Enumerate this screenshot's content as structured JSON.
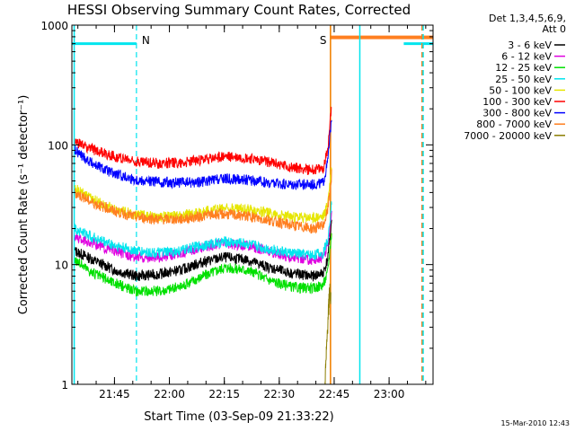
{
  "chart_data": {
    "type": "line",
    "title": "HESSI Observing Summary Count Rates, Corrected",
    "xlabel": "Start Time (03-Sep-09 21:33:22)",
    "ylabel": "Corrected Count Rate (s⁻¹ detector⁻¹)",
    "yscale": "log",
    "ylim": [
      1,
      1000
    ],
    "xlim": [
      "21:33:22",
      "23:12:00"
    ],
    "x_ticks": [
      "21:45",
      "22:00",
      "22:15",
      "22:30",
      "22:45",
      "23:00"
    ],
    "y_ticks": [
      "1",
      "10",
      "100",
      "1000"
    ],
    "grid": false,
    "legend_header": [
      "Det 1,3,4,5,6,9,",
      "Att 0"
    ],
    "legend_position": "right",
    "timestamp": "15-Mar-2010 12:43",
    "markers": [
      {
        "label": "N",
        "time": "21:51",
        "color": "#00e5ee",
        "style": "dashed"
      },
      {
        "label": "S",
        "time": "22:44",
        "color": "#ff8000",
        "style": "solid"
      }
    ],
    "night_bars": [
      {
        "start": "21:33:22",
        "end": "21:51",
        "level": 700,
        "color": "#00e5ee"
      },
      {
        "start": "23:04",
        "end": "23:12",
        "level": 700,
        "color": "#00e5ee"
      }
    ],
    "saa_bar": {
      "start": "22:44",
      "end": "23:12",
      "level": 790,
      "color": "#ff7f20"
    },
    "boundary_lines": [
      {
        "time": "21:34",
        "color": "#00e5ee",
        "style": "solid"
      },
      {
        "time": "22:44",
        "color": "#c08000",
        "style": "solid"
      },
      {
        "time": "22:52",
        "color": "#00e5ee",
        "style": "solid"
      },
      {
        "time": "23:09",
        "color": "#ff7f20",
        "style": "dashed"
      },
      {
        "time": "23:09.3",
        "color": "#00e5ee",
        "style": "dashed"
      }
    ],
    "series": [
      {
        "name": "3 - 6 keV",
        "color": "#000000",
        "values_at": [
          [
            21.57,
            13
          ],
          [
            21.65,
            11
          ],
          [
            21.75,
            9
          ],
          [
            21.85,
            8
          ],
          [
            21.95,
            8.3
          ],
          [
            22.05,
            9
          ],
          [
            22.15,
            10.5
          ],
          [
            22.25,
            11.5
          ],
          [
            22.35,
            11
          ],
          [
            22.45,
            9.5
          ],
          [
            22.55,
            8.5
          ],
          [
            22.65,
            8
          ],
          [
            22.7,
            8.5
          ],
          [
            22.72,
            11
          ],
          [
            22.74,
            25
          ]
        ]
      },
      {
        "name": "6 - 12 keV",
        "color": "#e000e0",
        "values_at": [
          [
            21.57,
            17
          ],
          [
            21.65,
            15
          ],
          [
            21.75,
            13
          ],
          [
            21.85,
            11.5
          ],
          [
            21.95,
            11.5
          ],
          [
            22.05,
            12.5
          ],
          [
            22.15,
            14
          ],
          [
            22.25,
            15
          ],
          [
            22.35,
            14.5
          ],
          [
            22.45,
            13
          ],
          [
            22.55,
            11.5
          ],
          [
            22.65,
            11
          ],
          [
            22.7,
            11.5
          ],
          [
            22.72,
            14
          ],
          [
            22.74,
            30
          ]
        ]
      },
      {
        "name": "12 - 25 keV",
        "color": "#00e000",
        "values_at": [
          [
            21.57,
            11
          ],
          [
            21.65,
            8.5
          ],
          [
            21.75,
            7
          ],
          [
            21.85,
            6
          ],
          [
            21.95,
            6
          ],
          [
            22.05,
            6.5
          ],
          [
            22.15,
            8
          ],
          [
            22.25,
            9.5
          ],
          [
            22.35,
            9
          ],
          [
            22.45,
            7.5
          ],
          [
            22.55,
            6.5
          ],
          [
            22.65,
            6.3
          ],
          [
            22.7,
            6.8
          ],
          [
            22.72,
            8.5
          ],
          [
            22.74,
            20
          ]
        ]
      },
      {
        "name": "25 - 50 keV",
        "color": "#00e5ee",
        "values_at": [
          [
            21.57,
            20
          ],
          [
            21.65,
            17
          ],
          [
            21.75,
            14.5
          ],
          [
            21.85,
            13
          ],
          [
            21.95,
            12.5
          ],
          [
            22.05,
            13
          ],
          [
            22.15,
            14.5
          ],
          [
            22.25,
            15.5
          ],
          [
            22.35,
            15
          ],
          [
            22.45,
            13.5
          ],
          [
            22.55,
            12.5
          ],
          [
            22.65,
            12
          ],
          [
            22.7,
            12.5
          ],
          [
            22.72,
            16
          ],
          [
            22.74,
            35
          ]
        ]
      },
      {
        "name": "50 - 100 keV",
        "color": "#e6e600",
        "values_at": [
          [
            21.57,
            43
          ],
          [
            21.65,
            35
          ],
          [
            21.75,
            29
          ],
          [
            21.85,
            26
          ],
          [
            21.95,
            25
          ],
          [
            22.05,
            25.5
          ],
          [
            22.15,
            27.5
          ],
          [
            22.25,
            30
          ],
          [
            22.35,
            29
          ],
          [
            22.45,
            27
          ],
          [
            22.55,
            25
          ],
          [
            22.65,
            24.5
          ],
          [
            22.7,
            25
          ],
          [
            22.72,
            32
          ],
          [
            22.74,
            70
          ]
        ]
      },
      {
        "name": "100 - 300 keV",
        "color": "#ff0000",
        "values_at": [
          [
            21.57,
            105
          ],
          [
            21.65,
            92
          ],
          [
            21.75,
            80
          ],
          [
            21.85,
            73
          ],
          [
            21.95,
            70
          ],
          [
            22.05,
            71
          ],
          [
            22.15,
            75
          ],
          [
            22.25,
            80
          ],
          [
            22.35,
            78
          ],
          [
            22.45,
            72
          ],
          [
            22.55,
            65
          ],
          [
            22.65,
            62
          ],
          [
            22.7,
            63
          ],
          [
            22.72,
            90
          ],
          [
            22.74,
            240
          ]
        ]
      },
      {
        "name": "300 - 800 keV",
        "color": "#0000ff",
        "values_at": [
          [
            21.57,
            90
          ],
          [
            21.65,
            70
          ],
          [
            21.75,
            57
          ],
          [
            21.85,
            51
          ],
          [
            21.95,
            49
          ],
          [
            22.05,
            48
          ],
          [
            22.15,
            49
          ],
          [
            22.25,
            52
          ],
          [
            22.35,
            51
          ],
          [
            22.45,
            48
          ],
          [
            22.55,
            47
          ],
          [
            22.65,
            47
          ],
          [
            22.7,
            48
          ],
          [
            22.72,
            70
          ],
          [
            22.74,
            190
          ]
        ]
      },
      {
        "name": "800 - 7000 keV",
        "color": "#ff7f20",
        "values_at": [
          [
            21.57,
            40
          ],
          [
            21.65,
            33
          ],
          [
            21.75,
            28
          ],
          [
            21.85,
            25
          ],
          [
            21.95,
            24
          ],
          [
            22.05,
            24
          ],
          [
            22.15,
            25.5
          ],
          [
            22.25,
            26.5
          ],
          [
            22.35,
            25.5
          ],
          [
            22.45,
            23.5
          ],
          [
            22.55,
            21.5
          ],
          [
            22.65,
            20
          ],
          [
            22.7,
            21
          ],
          [
            22.72,
            28
          ],
          [
            22.74,
            60
          ]
        ]
      },
      {
        "name": "7000 - 20000 keV",
        "color": "#8b7d00",
        "values_at": [
          [
            22.708,
            1
          ],
          [
            22.715,
            1.8
          ],
          [
            22.72,
            3
          ],
          [
            22.725,
            4.5
          ],
          [
            22.73,
            6
          ],
          [
            22.735,
            5
          ]
        ]
      }
    ]
  }
}
